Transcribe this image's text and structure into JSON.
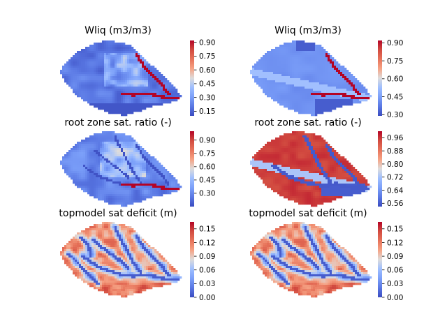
{
  "chart_data": [
    {
      "type": "heatmap",
      "title": "Wliq (m3/m3)",
      "colormap": "coolwarm",
      "vmin": 0.1,
      "vmax": 0.92,
      "colorbar_ticks": [
        "0.15",
        "0.30",
        "0.45",
        "0.60",
        "0.75",
        "0.90"
      ],
      "pattern": "wliq_a"
    },
    {
      "type": "heatmap",
      "title": "Wliq (m3/m3)",
      "colormap": "coolwarm",
      "vmin": 0.29,
      "vmax": 0.92,
      "colorbar_ticks": [
        "0.30",
        "0.45",
        "0.60",
        "0.75",
        "0.90"
      ],
      "pattern": "wliq_b"
    },
    {
      "type": "heatmap",
      "title": "root zone sat. ratio (-)",
      "colormap": "coolwarm",
      "vmin": 0.15,
      "vmax": 1.0,
      "colorbar_ticks": [
        "0.30",
        "0.45",
        "0.60",
        "0.75",
        "0.90"
      ],
      "pattern": "rz_a"
    },
    {
      "type": "heatmap",
      "title": "root zone sat. ratio (-)",
      "colormap": "coolwarm",
      "vmin": 0.54,
      "vmax": 1.0,
      "colorbar_ticks": [
        "0.56",
        "0.64",
        "0.72",
        "0.80",
        "0.88",
        "0.96"
      ],
      "pattern": "rz_b"
    },
    {
      "type": "heatmap",
      "title": "topmodel sat deficit (m)",
      "colormap": "coolwarm",
      "vmin": 0.0,
      "vmax": 0.165,
      "colorbar_ticks": [
        "0.00",
        "0.03",
        "0.06",
        "0.09",
        "0.12",
        "0.15"
      ],
      "pattern": "topmodel"
    },
    {
      "type": "heatmap",
      "title": "topmodel sat deficit (m)",
      "colormap": "coolwarm",
      "vmin": 0.0,
      "vmax": 0.165,
      "colorbar_ticks": [
        "0.00",
        "0.03",
        "0.06",
        "0.09",
        "0.12",
        "0.15"
      ],
      "pattern": "topmodel"
    }
  ]
}
